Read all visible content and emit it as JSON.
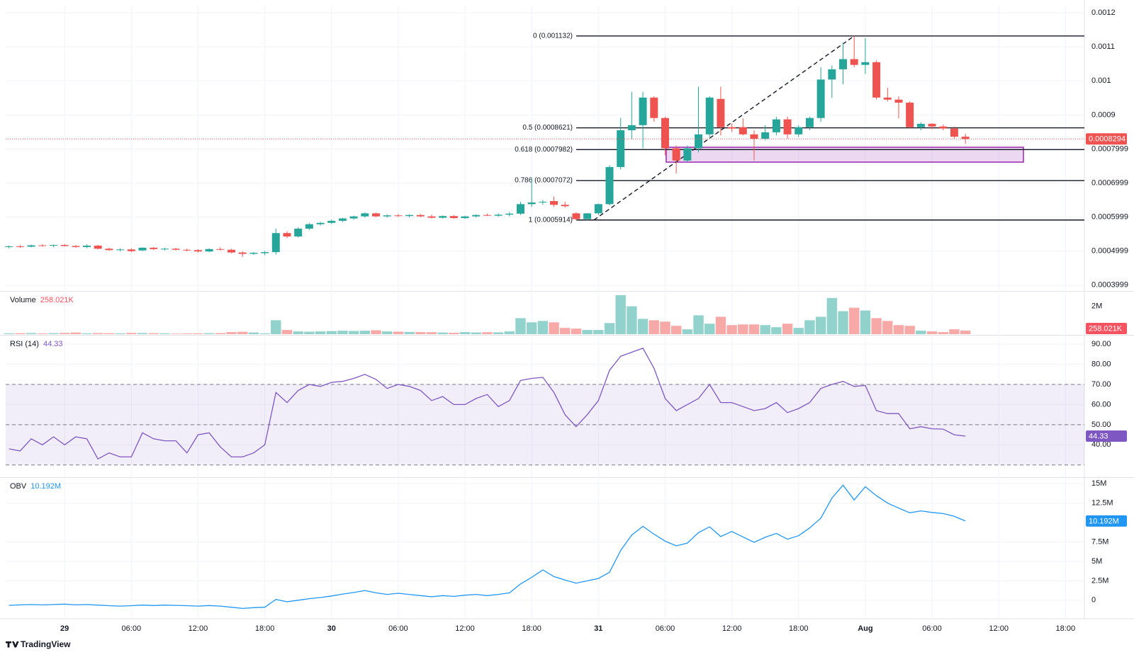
{
  "brand": "TradingView",
  "chart_data": [
    {
      "type": "candlestick",
      "open": [
        0.000512,
        0.000514,
        0.000513,
        0.000517,
        0.000516,
        0.000518,
        0.000515,
        0.000512,
        0.000516,
        0.000507,
        0.000503,
        0.000505,
        0.000502,
        0.00051,
        0.000506,
        0.000507,
        0.000504,
        0.000503,
        0.000499,
        0.000506,
        0.000504,
        0.000496,
        0.000492,
        0.000494,
        0.000497,
        0.000553,
        0.000543,
        0.000566,
        0.000579,
        0.000583,
        0.000589,
        0.000596,
        0.000602,
        0.000611,
        0.000602,
        0.000605,
        0.000603,
        0.000606,
        0.000602,
        0.000598,
        0.000603,
        0.000597,
        0.000602,
        0.000606,
        0.000604,
        0.000607,
        0.00061,
        0.000638,
        0.000643,
        0.000647,
        0.000636,
        0.000611,
        0.000594,
        0.000611,
        0.000638,
        0.000747,
        0.000855,
        0.00087,
        0.000951,
        0.000891,
        0.000802,
        0.000766,
        0.000802,
        0.000843,
        0.000947,
        0.000864,
        0.000864,
        0.000843,
        0.00083,
        0.000849,
        0.000887,
        0.000843,
        0.000864,
        0.000891,
        0.001004,
        0.001034,
        0.001064,
        0.001047,
        0.001055,
        0.000951,
        0.000945,
        0.000936,
        0.000864,
        0.000874,
        0.000866,
        0.00086,
        0.000836
      ],
      "high": [
        0.000516,
        0.000518,
        0.000519,
        0.00052,
        0.000519,
        0.000521,
        0.000518,
        0.00052,
        0.000518,
        0.00051,
        0.000508,
        0.000508,
        0.000511,
        0.000512,
        0.00051,
        0.00051,
        0.000507,
        0.000506,
        0.000508,
        0.000511,
        0.000507,
        0.000499,
        0.000497,
        0.0005,
        0.000566,
        0.000558,
        0.00057,
        0.000583,
        0.000586,
        0.000593,
        0.000598,
        0.000604,
        0.000614,
        0.000613,
        0.000608,
        0.000609,
        0.000608,
        0.000609,
        0.000607,
        0.000605,
        0.000606,
        0.000604,
        0.000608,
        0.00061,
        0.000611,
        0.000615,
        0.000645,
        0.000715,
        0.00065,
        0.00066,
        0.000645,
        0.000614,
        0.000612,
        0.00064,
        0.000752,
        0.000891,
        0.000968,
        0.000968,
        0.000955,
        0.000895,
        0.00081,
        0.00081,
        0.000983,
        0.000955,
        0.000983,
        0.000875,
        0.00089,
        0.000855,
        0.00087,
        0.000895,
        0.000895,
        0.00087,
        0.000895,
        0.00104,
        0.001045,
        0.001111,
        0.001132,
        0.001126,
        0.00106,
        0.00098,
        0.000955,
        0.00094,
        0.000878,
        0.000876,
        0.000872,
        0.000866,
        0.000845
      ],
      "low": [
        0.000508,
        0.00051,
        0.000511,
        0.000513,
        0.000512,
        0.000513,
        0.00051,
        0.000509,
        0.000505,
        0.000501,
        0.000499,
        0.000497,
        0.0005,
        0.000503,
        0.000502,
        0.000502,
        0.000499,
        0.000496,
        0.000497,
        0.000502,
        0.000494,
        0.000483,
        0.000489,
        0.000488,
        0.00049,
        0.000538,
        0.00054,
        0.000562,
        0.000575,
        0.00058,
        0.000585,
        0.000592,
        0.000598,
        0.0006,
        0.000598,
        0.0006,
        0.000599,
        0.0006,
        0.000596,
        0.000596,
        0.000595,
        0.000595,
        0.000599,
        0.000603,
        0.000601,
        0.000602,
        0.000606,
        0.00063,
        0.000636,
        0.00063,
        0.000628,
        0.00059,
        0.000591,
        0.000606,
        0.000634,
        0.00074,
        0.00083,
        0.000802,
        0.00088,
        0.000781,
        0.000728,
        0.000762,
        0.00079,
        0.000835,
        0.00084,
        0.00085,
        0.00084,
        0.000766,
        0.000825,
        0.00084,
        0.00083,
        0.000835,
        0.000855,
        0.00088,
        0.00095,
        0.00099,
        0.00104,
        0.00102,
        0.000945,
        0.00094,
        0.00089,
        0.00086,
        0.000855,
        0.000858,
        0.000855,
        0.00083,
        0.000815
      ],
      "close": [
        0.000514,
        0.000513,
        0.000517,
        0.000516,
        0.000518,
        0.000515,
        0.000512,
        0.000516,
        0.000507,
        0.000503,
        0.000505,
        0.0005,
        0.00051,
        0.000506,
        0.000507,
        0.000504,
        0.000503,
        0.000499,
        0.000506,
        0.000504,
        0.000496,
        0.000492,
        0.000495,
        0.000497,
        0.000553,
        0.000543,
        0.000566,
        0.000579,
        0.000583,
        0.000589,
        0.000596,
        0.000602,
        0.000611,
        0.000602,
        0.000605,
        0.000603,
        0.000606,
        0.000602,
        0.000598,
        0.000603,
        0.000597,
        0.000602,
        0.000606,
        0.000604,
        0.000607,
        0.00061,
        0.000638,
        0.000643,
        0.000645,
        0.000636,
        0.000632,
        0.000594,
        0.000611,
        0.000638,
        0.000747,
        0.000855,
        0.00087,
        0.000951,
        0.000891,
        0.000802,
        0.000766,
        0.000802,
        0.000843,
        0.000951,
        0.000864,
        0.00086,
        0.000843,
        0.00083,
        0.000849,
        0.000887,
        0.000843,
        0.000864,
        0.000891,
        0.001004,
        0.001034,
        0.001064,
        0.001047,
        0.001055,
        0.000951,
        0.000945,
        0.000936,
        0.000864,
        0.000874,
        0.000866,
        0.00086,
        0.000836,
        0.0008294
      ],
      "up_color": "#26a69a",
      "down_color": "#ef5350",
      "ylim": [
        0.000385,
        0.001221
      ],
      "yticks": [
        0.0003999,
        0.0004999,
        0.0005999,
        0.0006999,
        0.0007999,
        0.0009,
        0.001,
        0.0011,
        0.0012
      ],
      "xlim": [
        -0.3,
        96.7
      ],
      "xticks": [
        {
          "value": 5,
          "label": "29"
        },
        {
          "value": 11,
          "label": "06:00"
        },
        {
          "value": 17,
          "label": "12:00"
        },
        {
          "value": 23,
          "label": "18:00"
        },
        {
          "value": 29,
          "label": "30"
        },
        {
          "value": 35,
          "label": "06:00"
        },
        {
          "value": 41,
          "label": "12:00"
        },
        {
          "value": 47,
          "label": "18:00"
        },
        {
          "value": 53,
          "label": "31"
        },
        {
          "value": 59,
          "label": "06:00"
        },
        {
          "value": 65,
          "label": "12:00"
        },
        {
          "value": 71,
          "label": "18:00"
        },
        {
          "value": 77,
          "label": "Aug"
        },
        {
          "value": 83,
          "label": "06:00"
        },
        {
          "value": 89,
          "label": "12:00"
        },
        {
          "value": 95,
          "label": "18:00"
        }
      ],
      "grid": true,
      "fib_levels": [
        {
          "value": 0.001132,
          "label": "0 (0.001132)"
        },
        {
          "value": 0.0008621,
          "label": "0.5 (0.0008621)"
        },
        {
          "value": 0.0007982,
          "label": "0.618 (0.0007982)"
        },
        {
          "value": 0.0007072,
          "label": "0.786 (0.0007072)"
        },
        {
          "value": 0.0005914,
          "label": "1 (0.0005914)"
        }
      ]
    },
    {
      "type": "bar",
      "title": "Volume",
      "values": [
        60000,
        70000,
        80000,
        50000,
        70000,
        90000,
        120000,
        60000,
        80000,
        70000,
        60000,
        90000,
        80000,
        70000,
        60000,
        40000,
        50000,
        60000,
        70000,
        80000,
        150000,
        170000,
        120000,
        60000,
        1000000,
        300000,
        200000,
        180000,
        200000,
        220000,
        250000,
        230000,
        250000,
        280000,
        200000,
        180000,
        160000,
        150000,
        140000,
        120000,
        100000,
        150000,
        120000,
        140000,
        130000,
        200000,
        1150000,
        850000,
        950000,
        850000,
        450000,
        400000,
        300000,
        300000,
        800000,
        2800000,
        2000000,
        1100000,
        1000000,
        900000,
        600000,
        350000,
        1350000,
        750000,
        1250000,
        650000,
        700000,
        700000,
        650000,
        500000,
        750000,
        450000,
        1000000,
        1250000,
        2600000,
        1650000,
        1900000,
        1700000,
        1150000,
        950000,
        650000,
        600000,
        250000,
        200000,
        150000,
        350000,
        258021
      ],
      "value_labels": [
        null,
        null,
        null,
        null,
        null,
        null,
        null,
        null,
        null,
        null,
        null,
        null,
        null,
        null,
        null,
        null,
        null,
        null,
        null,
        null,
        null,
        null,
        null,
        null,
        null,
        null,
        null,
        null,
        null,
        null,
        null,
        null,
        null,
        null,
        null,
        null,
        null,
        null,
        null,
        null,
        null,
        null,
        null,
        null,
        null,
        null,
        null,
        null,
        null,
        null,
        null,
        null,
        null,
        null,
        null,
        null,
        null,
        null,
        null,
        null,
        null,
        null,
        null,
        null,
        null,
        null,
        null,
        null,
        null,
        null,
        null,
        null,
        null,
        null,
        null,
        null,
        null,
        null,
        null,
        null,
        null,
        null,
        null,
        null,
        null,
        null,
        "258.021K"
      ],
      "up_color": "#92d2cc",
      "down_color": "#f7a9a7",
      "badge_color": "#f7525f",
      "ylim": [
        0,
        3000000
      ],
      "yticks": [
        {
          "value": 2000000,
          "label": "2M"
        }
      ]
    },
    {
      "type": "line",
      "title": "RSI (14)",
      "values": [
        38,
        37,
        43,
        40,
        44,
        40,
        44,
        43,
        33,
        36,
        34,
        34,
        46,
        43,
        42,
        42,
        36,
        45,
        46,
        39,
        34,
        34,
        36,
        40,
        66,
        61,
        67,
        70,
        69,
        71,
        71.5,
        73,
        75,
        72.5,
        68,
        70,
        69,
        67,
        62,
        64,
        60,
        60,
        63,
        65,
        59,
        62,
        72,
        73,
        73.5,
        66,
        55,
        49,
        55,
        62,
        77,
        84,
        86,
        88,
        78,
        63,
        57,
        60,
        63,
        70,
        61,
        61,
        59,
        57,
        58,
        61,
        56,
        58,
        61,
        68,
        70,
        71.5,
        69,
        69.5,
        57,
        55.5,
        55.5,
        48,
        49,
        48,
        47.8,
        45,
        44.33
      ],
      "color": "#7e57c2",
      "ylim": [
        24.3,
        93.9
      ],
      "yticks": [
        {
          "value": 40,
          "label": "40.00"
        },
        {
          "value": 50,
          "label": "50.00"
        },
        {
          "value": 60,
          "label": "60.00"
        },
        {
          "value": 70,
          "label": "70.00"
        },
        {
          "value": 80,
          "label": "80.00"
        },
        {
          "value": 90,
          "label": "90.00"
        }
      ],
      "bands": [
        30,
        50,
        70
      ]
    },
    {
      "type": "line",
      "title": "OBV",
      "values": [
        -650000,
        -600000,
        -550000,
        -600000,
        -550000,
        -500000,
        -600000,
        -550000,
        -620000,
        -700000,
        -750000,
        -700000,
        -620000,
        -680000,
        -620000,
        -660000,
        -700000,
        -750000,
        -680000,
        -750000,
        -900000,
        -1050000,
        -950000,
        -900000,
        100000,
        -200000,
        0,
        200000,
        350000,
        550000,
        800000,
        1000000,
        1250000,
        950000,
        750000,
        900000,
        750000,
        600000,
        450000,
        600000,
        500000,
        650000,
        750000,
        600000,
        750000,
        950000,
        2100000,
        2950000,
        3900000,
        3050000,
        2600000,
        2200000,
        2500000,
        2800000,
        3600000,
        6400000,
        8400000,
        9500000,
        8500000,
        7600000,
        7000000,
        7350000,
        8700000,
        9450000,
        8200000,
        8850000,
        8150000,
        7450000,
        8100000,
        8600000,
        7850000,
        8300000,
        9300000,
        10550000,
        13150000,
        14800000,
        12900000,
        14600000,
        13450000,
        12500000,
        11850000,
        11250000,
        11500000,
        11300000,
        11150000,
        10800000,
        10192000
      ],
      "value_labels": [
        null,
        null,
        null,
        null,
        null,
        null,
        null,
        null,
        null,
        null,
        null,
        null,
        null,
        null,
        null,
        null,
        null,
        null,
        null,
        null,
        null,
        null,
        null,
        null,
        null,
        null,
        null,
        null,
        null,
        null,
        null,
        null,
        null,
        null,
        null,
        null,
        null,
        null,
        null,
        null,
        null,
        null,
        null,
        null,
        null,
        null,
        null,
        null,
        null,
        null,
        null,
        null,
        null,
        null,
        null,
        null,
        null,
        null,
        null,
        null,
        null,
        null,
        null,
        null,
        null,
        null,
        null,
        null,
        null,
        null,
        null,
        null,
        null,
        null,
        null,
        null,
        null,
        null,
        null,
        null,
        null,
        null,
        null,
        null,
        null,
        null,
        "10.192M"
      ],
      "color": "#2196f3",
      "ylim": [
        -2200000,
        15650000
      ],
      "yticks": [
        0,
        {
          "value": 2500000,
          "label": "2.5M"
        },
        {
          "value": 5000000,
          "label": "5M"
        },
        {
          "value": 7500000,
          "label": "7.5M"
        },
        {
          "value": 12500000,
          "label": "12.5M"
        },
        {
          "value": 15000000,
          "label": "15M"
        }
      ]
    }
  ]
}
